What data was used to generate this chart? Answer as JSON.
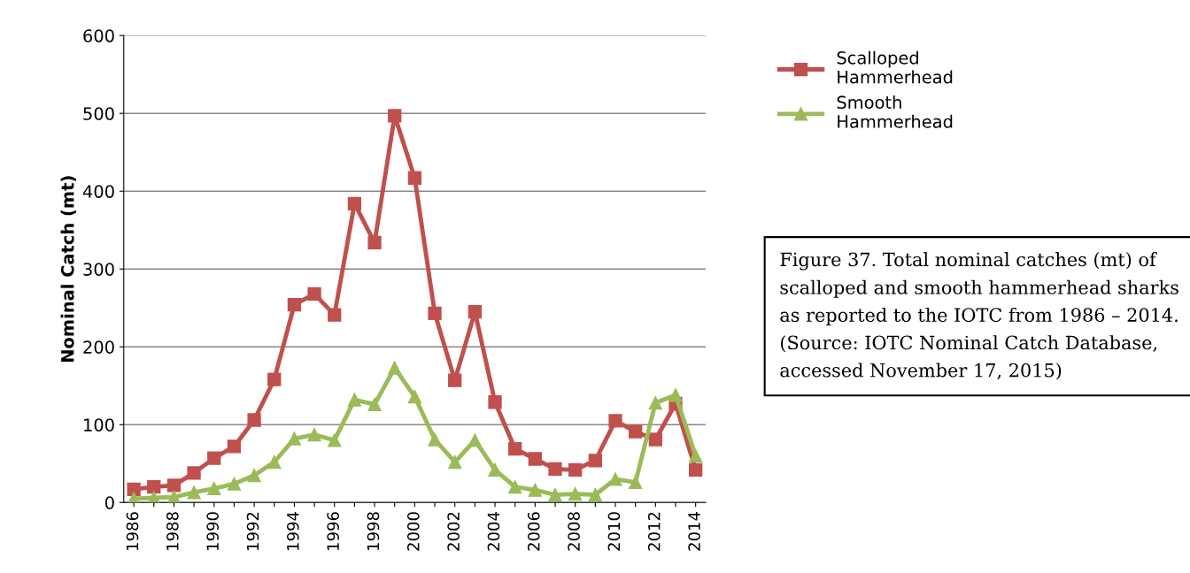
{
  "chart_data": {
    "type": "line",
    "ylabel": "Nominal Catch (mt)",
    "categories": [
      "1986",
      null,
      "1988",
      null,
      "1990",
      null,
      "1992",
      null,
      "1994",
      null,
      "1996",
      null,
      "1998",
      null,
      "2000",
      null,
      "2002",
      null,
      "2004",
      null,
      "2006",
      null,
      "2008",
      null,
      "2010",
      null,
      "2012",
      null,
      "2014"
    ],
    "series": [
      {
        "name": "Scalloped Hammerhead",
        "color": "#c0504d",
        "marker": "square",
        "values": [
          17,
          20,
          22,
          38,
          57,
          72,
          106,
          158,
          254,
          268,
          241,
          384,
          334,
          497,
          417,
          243,
          157,
          245,
          129,
          69,
          56,
          43,
          42,
          54,
          105,
          91,
          81,
          127,
          42
        ]
      },
      {
        "name": "Smooth Hammerhead",
        "color": "#9bbb59",
        "marker": "triangle",
        "values": [
          5,
          6,
          7,
          13,
          18,
          24,
          35,
          52,
          82,
          87,
          80,
          132,
          126,
          173,
          136,
          81,
          52,
          80,
          42,
          20,
          16,
          10,
          11,
          10,
          30,
          26,
          128,
          138,
          60
        ]
      }
    ],
    "ylim": [
      0,
      600
    ],
    "yticks": [
      0,
      100,
      200,
      300,
      400,
      500,
      600
    ],
    "grid": "y",
    "legend": "top right",
    "line_style": "solid",
    "annotations": [
      "Figure 37. Total nominal catches (mt) of scalloped and smooth hammerhead sharks as reported to the IOTC from 1986 – 2014. (Source: IOTC Nominal Catch Database, accessed November 17, 2015)"
    ]
  }
}
